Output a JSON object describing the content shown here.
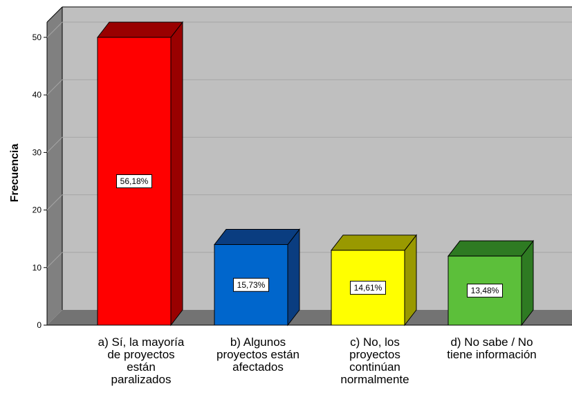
{
  "chart_data": {
    "type": "bar",
    "categories": [
      [
        "a) Sí, la mayoría",
        "de proyectos",
        "están",
        "paralizados"
      ],
      [
        "b) Algunos",
        "proyectos están",
        "afectados"
      ],
      [
        "c) No, los",
        "proyectos",
        "continúan",
        "normalmente"
      ],
      [
        "d) No sabe / No",
        "tiene información"
      ]
    ],
    "values": [
      50,
      14,
      13,
      12
    ],
    "data_labels": [
      "56,18%",
      "15,73%",
      "14,61%",
      "13,48%"
    ],
    "colors": [
      {
        "front": "#ff0000",
        "top": "#990000",
        "side": "#990000"
      },
      {
        "front": "#0066cc",
        "top": "#0a3d80",
        "side": "#0a3d80"
      },
      {
        "front": "#ffff00",
        "top": "#999900",
        "side": "#999900"
      },
      {
        "front": "#5cbf3a",
        "top": "#2e7a22",
        "side": "#2e7a22"
      }
    ],
    "ylabel": "Frecuencia",
    "xlabel": "",
    "ylim": [
      0,
      50
    ],
    "yticks": [
      0,
      10,
      20,
      30,
      40,
      50
    ],
    "grid": true,
    "style": "3d-bar"
  }
}
